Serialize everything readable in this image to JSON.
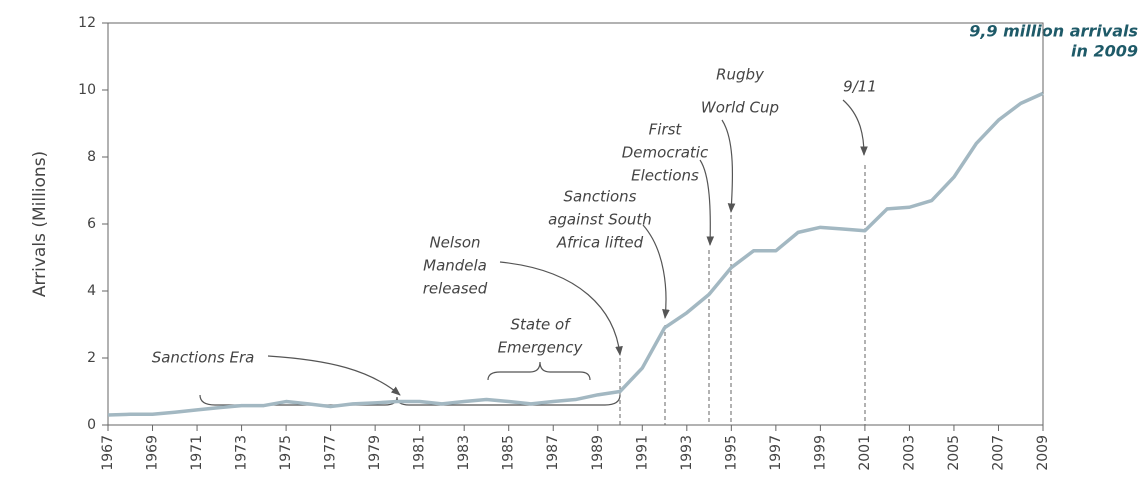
{
  "chart_data": {
    "type": "line",
    "title": [
      "9,9 million arrivals",
      "in 2009"
    ],
    "y_label": "Arrivals (Millions)",
    "x": [
      1967,
      1968,
      1969,
      1970,
      1971,
      1972,
      1973,
      1974,
      1975,
      1976,
      1977,
      1978,
      1979,
      1980,
      1981,
      1982,
      1983,
      1984,
      1985,
      1986,
      1987,
      1988,
      1989,
      1990,
      1991,
      1992,
      1993,
      1994,
      1995,
      1996,
      1997,
      1998,
      1999,
      2000,
      2001,
      2002,
      2003,
      2004,
      2005,
      2006,
      2007,
      2008,
      2009
    ],
    "series": [
      {
        "name": "Arrivals",
        "color": "#a3b8c2",
        "values": [
          0.3,
          0.32,
          0.32,
          0.38,
          0.45,
          0.52,
          0.58,
          0.58,
          0.7,
          0.63,
          0.55,
          0.63,
          0.66,
          0.7,
          0.7,
          0.63,
          0.7,
          0.76,
          0.7,
          0.63,
          0.7,
          0.76,
          0.9,
          1.0,
          1.7,
          2.9,
          3.35,
          3.9,
          4.7,
          5.2,
          5.2,
          5.75,
          5.9,
          5.85,
          5.8,
          6.45,
          6.5,
          6.7,
          7.4,
          8.4,
          9.1,
          9.6,
          9.9
        ]
      }
    ],
    "xlim": [
      1967,
      2009
    ],
    "xticks": [
      1967,
      1969,
      1971,
      1973,
      1975,
      1977,
      1979,
      1981,
      1983,
      1985,
      1987,
      1989,
      1991,
      1993,
      1995,
      1997,
      1999,
      2001,
      2003,
      2005,
      2007,
      2009
    ],
    "ylim": [
      0,
      12
    ],
    "yticks": [
      0,
      2,
      4,
      6,
      8,
      10,
      12
    ],
    "annotations": [
      {
        "lines": [
          "Sanctions Era"
        ]
      },
      {
        "lines": [
          "State of",
          "Emergency"
        ]
      },
      {
        "lines": [
          "Nelson",
          "Mandela",
          "released"
        ]
      },
      {
        "lines": [
          "Sanctions",
          "against South",
          "Africa lifted"
        ]
      },
      {
        "lines": [
          "First",
          "Democratic",
          "Elections"
        ]
      },
      {
        "lines": [
          "Rugby",
          "World Cup"
        ]
      },
      {
        "lines": [
          "9/11"
        ]
      }
    ]
  }
}
